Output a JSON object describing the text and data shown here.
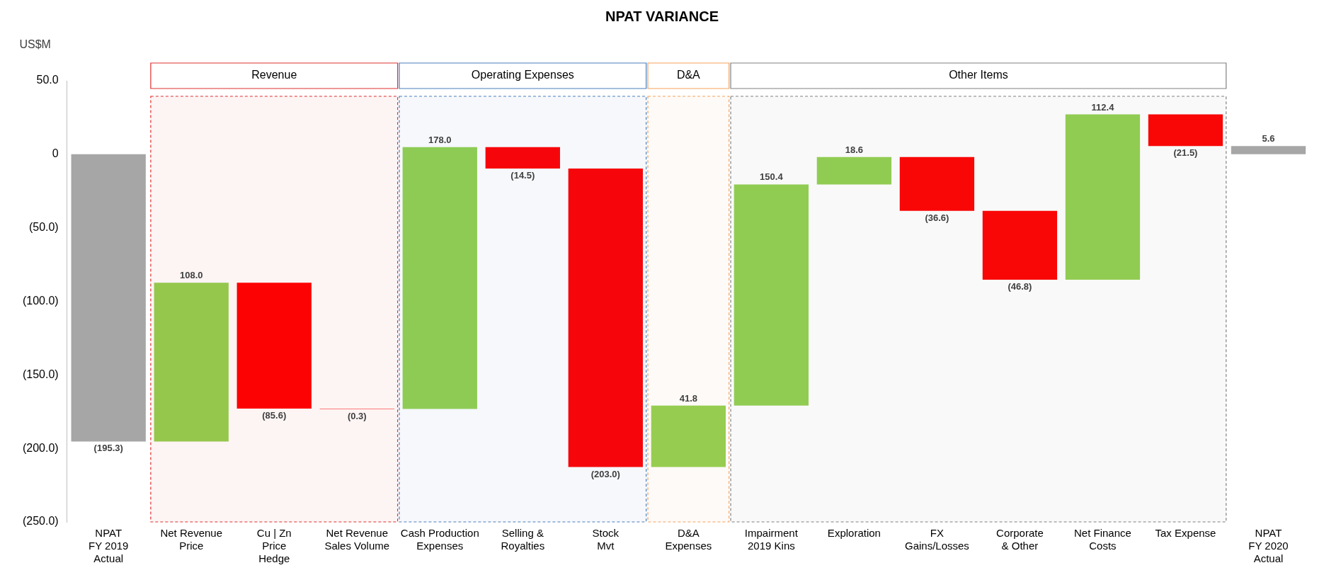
{
  "chart_data": {
    "type": "bar",
    "title": "NPAT VARIANCE",
    "ylabel": "US$M",
    "categories": [
      "NPAT\nFY 2019\nActual",
      "Net Revenue\nPrice",
      "Cu | Zn\nPrice\nHedge",
      "Net Revenue\nSales Volume",
      "Cash Production\nExpenses",
      "Selling &\nRoyalties",
      "Stock\nMvt",
      "D&A\nExpenses",
      "Impairment\n2019 Kins",
      "Exploration",
      "FX\nGains/Losses",
      "Corporate\n& Other",
      "Net Finance\nCosts",
      "Tax Expense",
      "NPAT\nFY 2020\nActual"
    ],
    "values": [
      -195.3,
      108.0,
      -85.6,
      -0.3,
      178.0,
      -14.5,
      -203.0,
      41.8,
      150.4,
      18.6,
      -36.6,
      -46.8,
      112.4,
      -21.5,
      5.6
    ],
    "base": [
      0,
      -195.3,
      -87.3,
      -172.9,
      -173.2,
      4.8,
      -9.7,
      -212.7,
      -170.9,
      -20.5,
      -1.9,
      -38.5,
      -85.3,
      27.1,
      0
    ],
    "colors": [
      "#a6a6a6",
      "#92d050",
      "#ff0000",
      "#ff0000",
      "#92d050",
      "#ff0000",
      "#ff0000",
      "#92d050",
      "#92d050",
      "#92d050",
      "#ff0000",
      "#ff0000",
      "#92d050",
      "#ff0000",
      "#a6a6a6"
    ],
    "value_labels": [
      "(195.3)",
      "108.0",
      "(85.6)",
      "(0.3)",
      "178.0",
      "(14.5)",
      "(203.0)",
      "41.8",
      "150.4",
      "18.6",
      "(36.6)",
      "(46.8)",
      "112.4",
      "(21.5)",
      "5.6"
    ],
    "ylim": [
      -250,
      50
    ],
    "yticks": [
      {
        "value": 50,
        "label": "50.0"
      },
      0,
      {
        "value": -50,
        "label": "(50.0)"
      },
      {
        "value": -100,
        "label": "(100.0)"
      },
      {
        "value": -150,
        "label": "(150.0)"
      },
      {
        "value": -200,
        "label": "(200.0)"
      },
      {
        "value": -250,
        "label": "(250.0)"
      }
    ],
    "bands": [
      {
        "axis": "x",
        "from": "Net Revenue\nPrice",
        "to": "Net Revenue\nSales Volume",
        "label": "Revenue",
        "color": "#e03030"
      },
      {
        "axis": "x",
        "from": "Cash Production\nExpenses",
        "to": "Stock\nMvt",
        "label": "Operating Expenses",
        "color": "#4a7ebb"
      },
      {
        "axis": "x",
        "from": "D&A\nExpenses",
        "to": "D&A\nExpenses",
        "label": "D&A",
        "color": "#f5a25d"
      },
      {
        "axis": "x",
        "from": "Impairment\n2019 Kins",
        "to": "Tax Expense",
        "label": "Other Items",
        "color": "#808080"
      }
    ],
    "grid": false,
    "legend": false
  }
}
